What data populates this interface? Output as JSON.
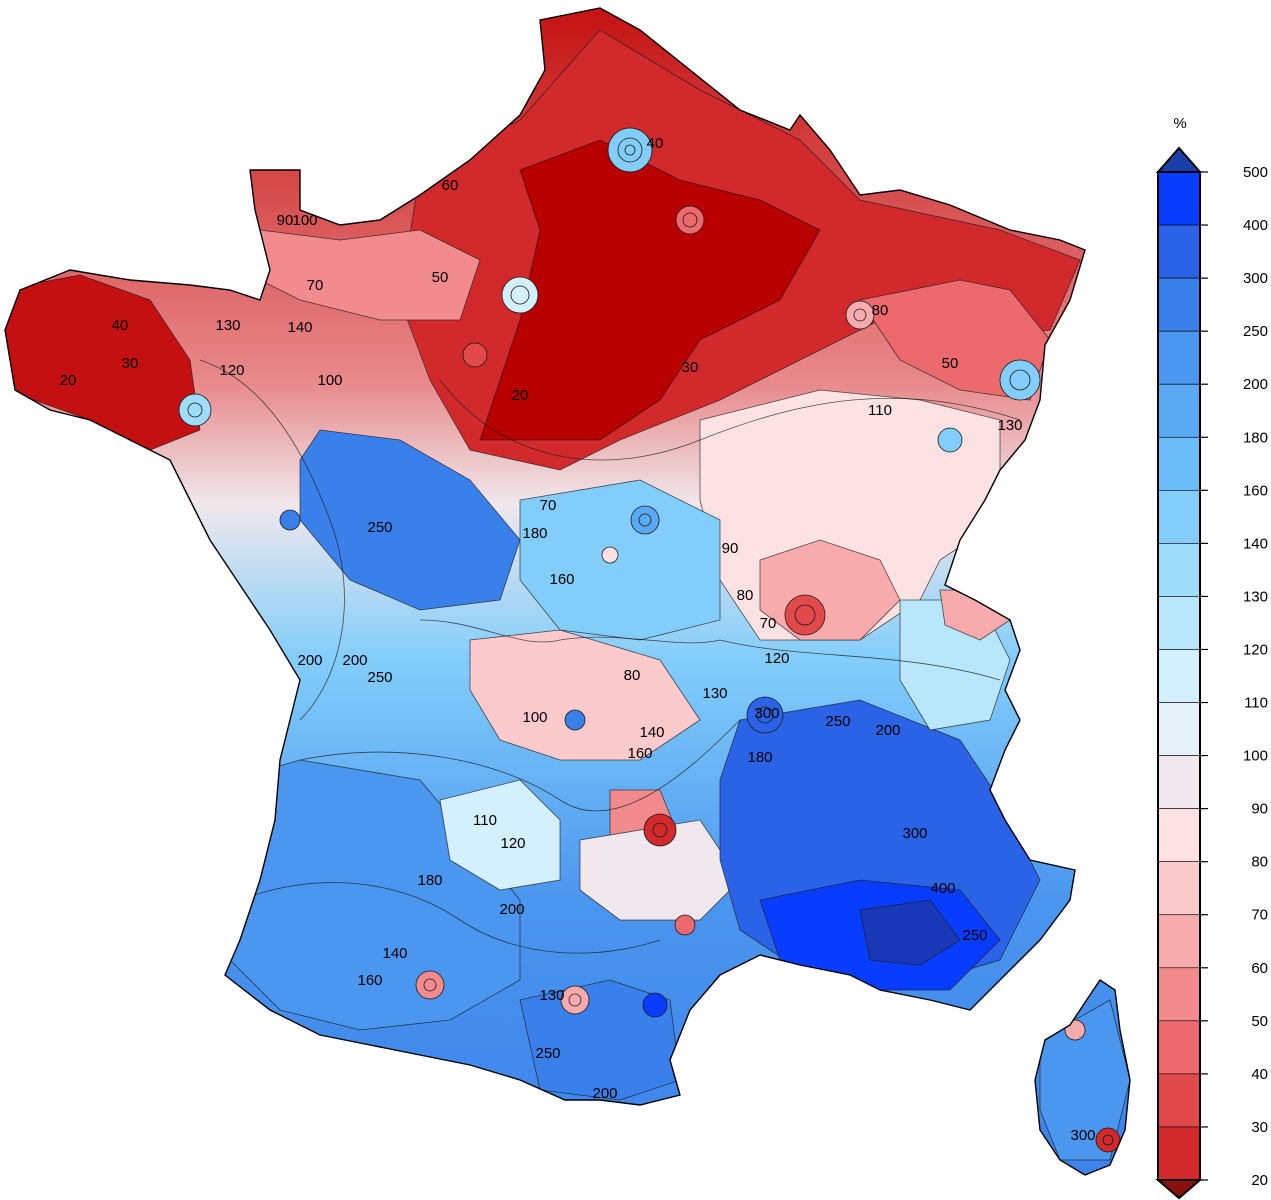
{
  "legend": {
    "unit": "%",
    "classes": [
      {
        "value": "500",
        "color": "#083dff"
      },
      {
        "value": "400",
        "color": "#2b63e6"
      },
      {
        "value": "300",
        "color": "#3a80ea"
      },
      {
        "value": "250",
        "color": "#4b96ee"
      },
      {
        "value": "200",
        "color": "#5aaaf3"
      },
      {
        "value": "180",
        "color": "#6bbcf8"
      },
      {
        "value": "160",
        "color": "#82cdfa"
      },
      {
        "value": "140",
        "color": "#9edcfb"
      },
      {
        "value": "130",
        "color": "#b8e7fc"
      },
      {
        "value": "120",
        "color": "#d2f0fd"
      },
      {
        "value": "110",
        "color": "#e6f1f8"
      },
      {
        "value": "100",
        "color": "#f0e8ec"
      },
      {
        "value": "90",
        "color": "#fde2e4"
      },
      {
        "value": "80",
        "color": "#fbcacc"
      },
      {
        "value": "70",
        "color": "#f7abad"
      },
      {
        "value": "60",
        "color": "#f28b8e"
      },
      {
        "value": "50",
        "color": "#ec6a6d"
      },
      {
        "value": "40",
        "color": "#e2494b"
      },
      {
        "value": "30",
        "color": "#d22a2c"
      },
      {
        "value": "20",
        "color": "#b80000"
      }
    ],
    "overflow_high_color": "#1a3fa8",
    "overflow_low_color": "#8a1010"
  },
  "contour_labels": [
    {
      "text": "20",
      "region": "paris-basin"
    },
    {
      "text": "30",
      "region": "paris-basin"
    },
    {
      "text": "40",
      "region": "north"
    },
    {
      "text": "50",
      "region": "normandy"
    },
    {
      "text": "60",
      "region": "normandy"
    },
    {
      "text": "70",
      "region": "normandy"
    },
    {
      "text": "90",
      "region": "cotentin"
    },
    {
      "text": "100",
      "region": "cotentin"
    },
    {
      "text": "40",
      "region": "brittany"
    },
    {
      "text": "30",
      "region": "brittany"
    },
    {
      "text": "20",
      "region": "brittany"
    },
    {
      "text": "130",
      "region": "brittany-east"
    },
    {
      "text": "140",
      "region": "brittany-east"
    },
    {
      "text": "120",
      "region": "brittany-east"
    },
    {
      "text": "100",
      "region": "maine"
    },
    {
      "text": "250",
      "region": "loire"
    },
    {
      "text": "200",
      "region": "loire"
    },
    {
      "text": "180",
      "region": "centre"
    },
    {
      "text": "160",
      "region": "centre"
    },
    {
      "text": "70",
      "region": "centre-north"
    },
    {
      "text": "90",
      "region": "burgundy"
    },
    {
      "text": "80",
      "region": "franche-comte"
    },
    {
      "text": "70",
      "region": "franche-comte"
    },
    {
      "text": "110",
      "region": "lorraine"
    },
    {
      "text": "80",
      "region": "lorraine"
    },
    {
      "text": "50",
      "region": "alsace"
    },
    {
      "text": "130",
      "region": "alsace"
    },
    {
      "text": "200",
      "region": "poitou"
    },
    {
      "text": "250",
      "region": "charente"
    },
    {
      "text": "80",
      "region": "limousin"
    },
    {
      "text": "100",
      "region": "limousin"
    },
    {
      "text": "130",
      "region": "auvergne"
    },
    {
      "text": "120",
      "region": "rhone"
    },
    {
      "text": "300",
      "region": "rhone"
    },
    {
      "text": "250",
      "region": "alps"
    },
    {
      "text": "200",
      "region": "alps"
    },
    {
      "text": "180",
      "region": "drome"
    },
    {
      "text": "300",
      "region": "provence"
    },
    {
      "text": "400",
      "region": "provence"
    },
    {
      "text": "250",
      "region": "cote-azur"
    },
    {
      "text": "160",
      "region": "cevennes"
    },
    {
      "text": "140",
      "region": "cevennes"
    },
    {
      "text": "110",
      "region": "quercy"
    },
    {
      "text": "120",
      "region": "quercy"
    },
    {
      "text": "180",
      "region": "gascony"
    },
    {
      "text": "200",
      "region": "gascony"
    },
    {
      "text": "160",
      "region": "pyrenees"
    },
    {
      "text": "140",
      "region": "pyrenees"
    },
    {
      "text": "130",
      "region": "aude"
    },
    {
      "text": "200",
      "region": "roussillon"
    },
    {
      "text": "250",
      "region": "roussillon"
    },
    {
      "text": "300",
      "region": "corsica"
    }
  ]
}
